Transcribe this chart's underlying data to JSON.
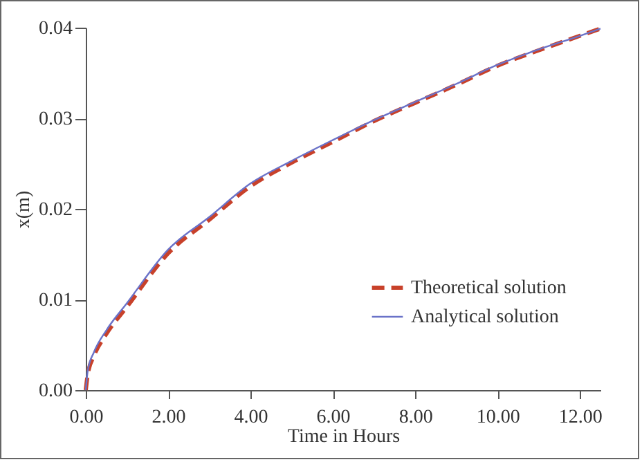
{
  "chart_data": {
    "type": "line",
    "xlabel": "Time in Hours",
    "ylabel": "x(m)",
    "xlim": [
      0,
      12.5
    ],
    "ylim": [
      0,
      0.04
    ],
    "xticks": [
      {
        "value": 0,
        "label": "0.00"
      },
      {
        "value": 2,
        "label": "2.00"
      },
      {
        "value": 4,
        "label": "4.00"
      },
      {
        "value": 6,
        "label": "6.00"
      },
      {
        "value": 8,
        "label": "8.00"
      },
      {
        "value": 10,
        "label": "10.00"
      },
      {
        "value": 12,
        "label": "12.00"
      }
    ],
    "yticks": [
      {
        "value": 0,
        "label": "0.00"
      },
      {
        "value": 0.01,
        "label": "0.01"
      },
      {
        "value": 0.02,
        "label": "0.02"
      },
      {
        "value": 0.03,
        "label": "0.03"
      },
      {
        "value": 0.04,
        "label": "0.04"
      }
    ],
    "x": [
      0,
      0.05,
      0.2,
      0.5,
      1,
      2,
      3,
      4,
      5,
      6,
      7,
      8,
      9,
      10,
      11,
      12,
      12.5
    ],
    "series": [
      {
        "name": "Theoretical solution",
        "color": "#c8412a",
        "line_style": "dashed",
        "values": [
          0,
          0.0018,
          0.0038,
          0.0062,
          0.0092,
          0.0151,
          0.0188,
          0.0225,
          0.0251,
          0.0274,
          0.0297,
          0.0317,
          0.0337,
          0.0358,
          0.0375,
          0.0391,
          0.0399
        ]
      },
      {
        "name": "Analytical solution",
        "color": "#6a72c8",
        "line_style": "solid",
        "values": [
          0,
          0.0022,
          0.0042,
          0.0066,
          0.0096,
          0.0155,
          0.0191,
          0.0228,
          0.0253,
          0.0276,
          0.0298,
          0.0318,
          0.0338,
          0.0359,
          0.0376,
          0.0391,
          0.0399
        ]
      }
    ],
    "grid": false,
    "legend": "bottom right"
  }
}
